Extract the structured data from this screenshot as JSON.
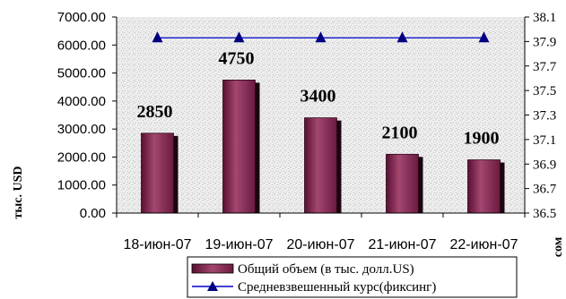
{
  "chart_data": {
    "type": "bar",
    "categories": [
      "18-июн-07",
      "19-июн-07",
      "20-июн-07",
      "21-июн-07",
      "22-июн-07"
    ],
    "series": [
      {
        "name": "Общий объем (в тыс. долл.US)",
        "type": "bar",
        "axis": "left",
        "values": [
          2850,
          4750,
          3400,
          2100,
          1900
        ],
        "data_labels": [
          "2850",
          "4750",
          "3400",
          "2100",
          "1900"
        ],
        "color": "#7a1f4a"
      },
      {
        "name": "Средневзвешенный курс(фиксинг)",
        "type": "line",
        "axis": "right",
        "marker": "triangle",
        "values": [
          37.93,
          37.93,
          37.93,
          37.93,
          37.93
        ],
        "color": "#0000cc"
      }
    ],
    "ylabel": "тыс. USD",
    "ylabel_right": "сом",
    "ylim": [
      0,
      7000
    ],
    "yticks": [
      "0.00",
      "1000.00",
      "2000.00",
      "3000.00",
      "4000.00",
      "5000.00",
      "6000.00",
      "7000.00"
    ],
    "ylim_right": [
      36.5,
      38.1
    ],
    "yticks_right": [
      "36.5",
      "36.7",
      "36.9",
      "37.1",
      "37.3",
      "37.5",
      "37.7",
      "37.9",
      "38.1"
    ],
    "grid": false,
    "legend_position": "bottom",
    "plot_background": "gray stipple texture"
  }
}
